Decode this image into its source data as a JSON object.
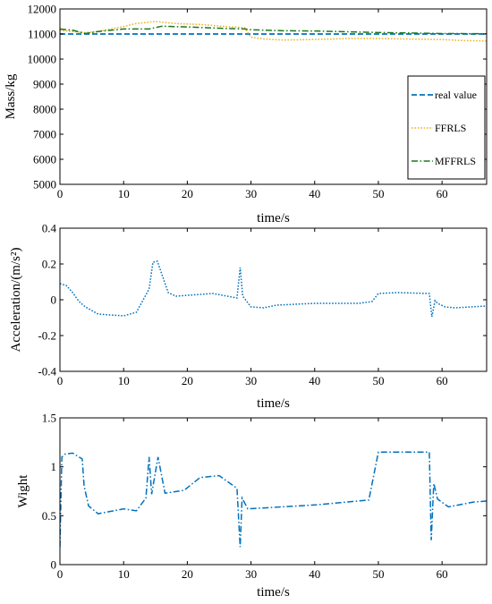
{
  "chart_data": [
    {
      "type": "line",
      "xlabel": "time/s",
      "ylabel": "Mass/kg",
      "xlim": [
        0,
        67
      ],
      "ylim": [
        5000,
        12000
      ],
      "xticks": [
        "0",
        "10",
        "20",
        "30",
        "40",
        "50",
        "60"
      ],
      "yticks": [
        "5000",
        "6000",
        "7000",
        "8000",
        "9000",
        "10000",
        "11000",
        "12000"
      ],
      "grid": false,
      "legend_position": "right",
      "series": [
        {
          "name": "real value",
          "color": "#0072BD",
          "dash": "dashed",
          "x": [
            0,
            67
          ],
          "y": [
            11000,
            11000
          ]
        },
        {
          "name": "FFRLS",
          "color": "#EDB120",
          "dash": "dotted",
          "x": [
            0,
            2,
            4,
            6,
            8,
            10,
            12,
            15,
            18,
            22,
            26,
            29,
            30,
            32,
            35,
            40,
            45,
            50,
            55,
            60,
            63,
            67
          ],
          "y": [
            11150,
            11100,
            11050,
            11100,
            11200,
            11300,
            11420,
            11500,
            11420,
            11380,
            11300,
            11250,
            10870,
            10800,
            10760,
            10780,
            10820,
            10820,
            10800,
            10780,
            10740,
            10720
          ]
        },
        {
          "name": "MFFRLS",
          "color": "#1A7A1A",
          "dash": "dash-dot",
          "x": [
            0,
            2,
            4,
            6,
            8,
            10,
            12,
            14,
            16,
            20,
            25,
            29,
            30,
            35,
            40,
            45,
            50,
            55,
            60,
            67
          ],
          "y": [
            11200,
            11150,
            11020,
            11100,
            11150,
            11200,
            11200,
            11200,
            11310,
            11280,
            11230,
            11200,
            11170,
            11130,
            11120,
            11090,
            11060,
            11040,
            11020,
            11010
          ]
        }
      ]
    },
    {
      "type": "line",
      "xlabel": "time/s",
      "ylabel": "Acceleration/(m/s²)",
      "xlim": [
        0,
        67
      ],
      "ylim": [
        -0.4,
        0.4
      ],
      "xticks": [
        "0",
        "10",
        "20",
        "30",
        "40",
        "50",
        "60"
      ],
      "yticks": [
        "-0.4",
        "-0.2",
        "0",
        "0.2",
        "0.4"
      ],
      "grid": false,
      "series": [
        {
          "color": "#0072BD",
          "dash": "dotted",
          "x": [
            0,
            1,
            2,
            3,
            4,
            6,
            10,
            12,
            14,
            14.6,
            15.3,
            17,
            18.2,
            24,
            27.8,
            28.3,
            28.7,
            30,
            32,
            34,
            40,
            47,
            49,
            50,
            53,
            58,
            58.4,
            58.9,
            59.3,
            60.5,
            62,
            67
          ],
          "y": [
            0.09,
            0.08,
            0.04,
            -0.01,
            -0.04,
            -0.08,
            -0.09,
            -0.07,
            0.06,
            0.21,
            0.215,
            0.04,
            0.02,
            0.035,
            0.01,
            0.18,
            0.02,
            -0.04,
            -0.045,
            -0.03,
            -0.02,
            -0.02,
            -0.01,
            0.035,
            0.04,
            0.035,
            -0.095,
            -0.005,
            -0.02,
            -0.04,
            -0.045,
            -0.035
          ]
        }
      ]
    },
    {
      "type": "line",
      "xlabel": "time/s",
      "ylabel": "Wight",
      "xlim": [
        0,
        67
      ],
      "ylim": [
        0,
        1.5
      ],
      "xticks": [
        "0",
        "10",
        "20",
        "30",
        "40",
        "50",
        "60"
      ],
      "yticks": [
        "0",
        "0.5",
        "1",
        "1.5"
      ],
      "grid": false,
      "series": [
        {
          "color": "#0072BD",
          "dash": "dash-dot",
          "x": [
            0,
            0.3,
            0.8,
            2,
            3.5,
            3.8,
            4.5,
            6,
            10,
            12,
            13.5,
            14,
            14.4,
            15.4,
            16.5,
            19.5,
            22,
            25,
            27.8,
            28.3,
            28.6,
            29.5,
            40,
            48.5,
            50,
            58,
            58.3,
            58.7,
            59.3,
            61,
            65,
            67
          ],
          "y": [
            0.18,
            1.1,
            1.13,
            1.14,
            1.08,
            0.8,
            0.6,
            0.52,
            0.57,
            0.55,
            0.68,
            1.1,
            0.72,
            1.1,
            0.73,
            0.76,
            0.89,
            0.91,
            0.78,
            0.18,
            0.68,
            0.57,
            0.61,
            0.66,
            1.15,
            1.15,
            0.25,
            0.83,
            0.67,
            0.59,
            0.64,
            0.65
          ]
        }
      ]
    }
  ]
}
